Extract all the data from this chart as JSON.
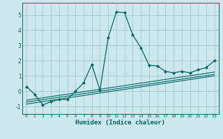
{
  "xlabel": "Humidex (Indice chaleur)",
  "background_color": "#cce8ec",
  "grid_color": "#aacdd4",
  "line_color": "#006868",
  "xlim": [
    -0.5,
    23.5
  ],
  "ylim": [
    -1.5,
    5.8
  ],
  "xtick_labels": [
    "0",
    "1",
    "2",
    "3",
    "4",
    "5",
    "6",
    "7",
    "8",
    "9",
    "10",
    "11",
    "12",
    "13",
    "14",
    "15",
    "16",
    "17",
    "18",
    "19",
    "20",
    "21",
    "22",
    "23"
  ],
  "yticks": [
    -1,
    0,
    1,
    2,
    3,
    4,
    5
  ],
  "main_x": [
    0,
    1,
    2,
    3,
    4,
    5,
    6,
    7,
    8,
    9,
    10,
    11,
    12,
    13,
    14,
    15,
    16,
    17,
    18,
    19,
    20,
    21,
    22,
    23
  ],
  "main_y": [
    0.3,
    -0.2,
    -0.9,
    -0.7,
    -0.55,
    -0.55,
    0.0,
    0.55,
    1.75,
    0.05,
    3.5,
    5.2,
    5.15,
    3.7,
    2.85,
    1.7,
    1.65,
    1.3,
    1.2,
    1.3,
    1.2,
    1.4,
    1.55,
    2.0
  ],
  "diag_lines": [
    {
      "x": [
        0,
        23
      ],
      "y": [
        -0.85,
        1.0
      ]
    },
    {
      "x": [
        0,
        23
      ],
      "y": [
        -0.72,
        1.1
      ]
    },
    {
      "x": [
        0,
        23
      ],
      "y": [
        -0.6,
        1.25
      ]
    }
  ]
}
